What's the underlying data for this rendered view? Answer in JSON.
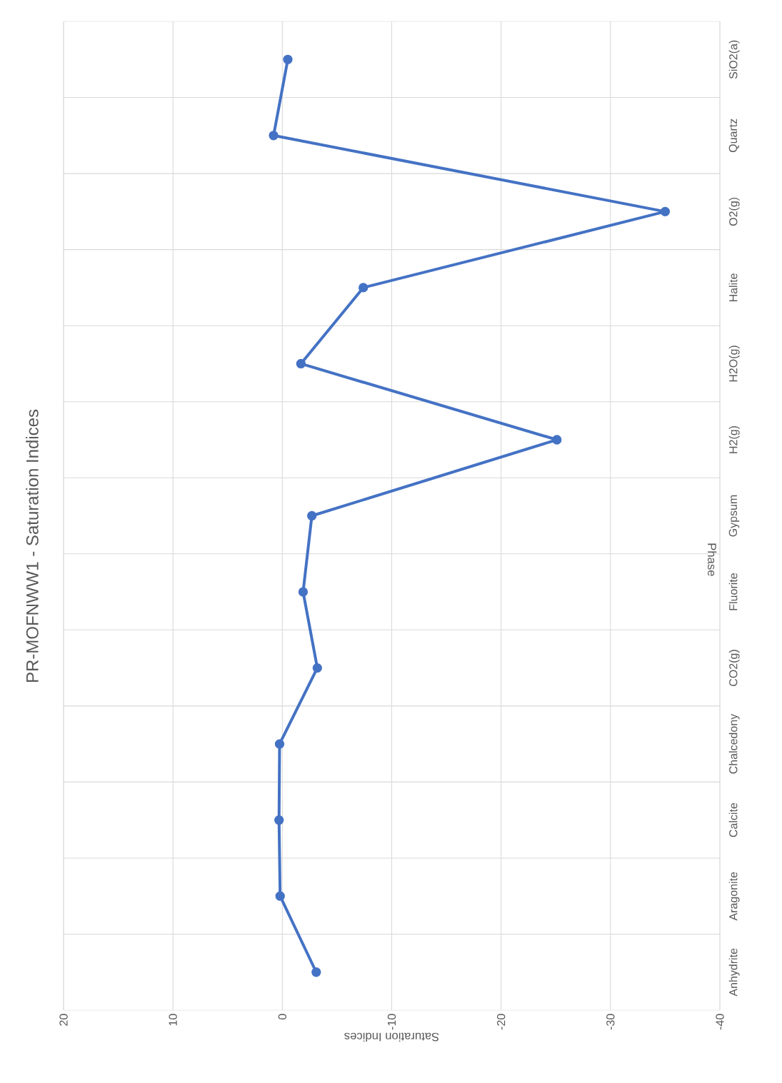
{
  "chart_data": {
    "type": "line",
    "orientation": "horizontal",
    "title": "PR-MOFNWW1 - Saturation Indices",
    "xlabel": "Saturation Indices",
    "ylabel": "Phase",
    "categories": [
      "SiO2(a)",
      "Quartz",
      "O2(g)",
      "Halite",
      "H2O(g)",
      "H2(g)",
      "Gypsum",
      "Fluorite",
      "CO2(g)",
      "Chalcedony",
      "Calcite",
      "Aragonite",
      "Anhydrite"
    ],
    "series": [
      {
        "color": "#4472c4",
        "values": [
          -0.5,
          0.8,
          -35.0,
          -7.4,
          -1.7,
          -25.1,
          -2.7,
          -1.9,
          -3.2,
          0.25,
          0.3,
          0.2,
          -3.1
        ]
      }
    ],
    "xlim": [
      20,
      -40
    ],
    "xticks": [
      20,
      10,
      0,
      -10,
      -20,
      -30,
      -40
    ],
    "grid": true,
    "marker": "circle",
    "line_style": "solid"
  }
}
